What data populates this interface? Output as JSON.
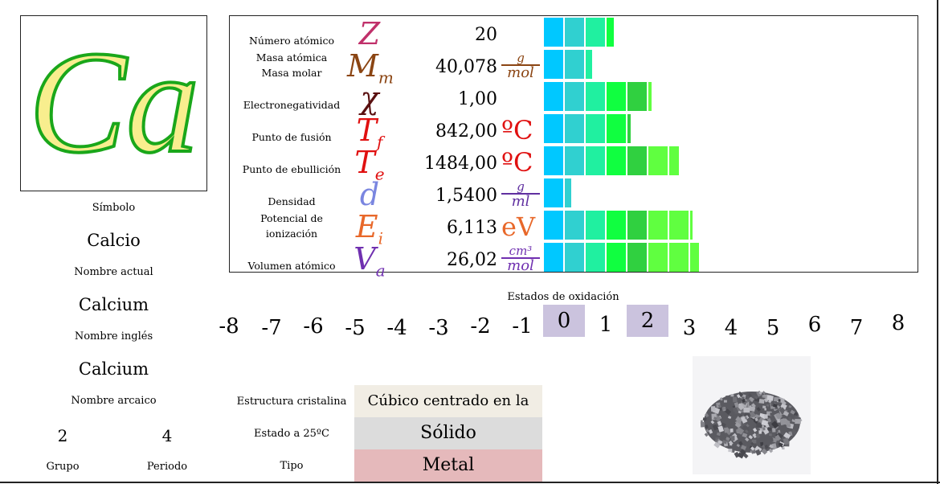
{
  "element": {
    "symbol": "Ca",
    "symbol_label": "Símbolo",
    "current_name": "Calcio",
    "current_name_label": "Nombre actual",
    "english_name": "Calcium",
    "english_name_label": "Nombre inglés",
    "archaic_name": "Calcium",
    "archaic_name_label": "Nombre arcaico",
    "group": "2",
    "group_label": "Grupo",
    "period": "4",
    "period_label": "Periodo"
  },
  "properties": [
    {
      "name": "Número atómico",
      "symbol": "Z",
      "sub": "",
      "value": "20",
      "unit": "",
      "bar_level": 0.52,
      "sym_color": "#c0306a"
    },
    {
      "name": "Masa atómica\nMasa molar",
      "symbol": "M",
      "sub": "m",
      "value": "40,078",
      "unit_num": "g",
      "unit_den": "mol",
      "bar_level": 0.36,
      "sym_color": "#8b4513",
      "unit_color": "#8b4513"
    },
    {
      "name": "Electronegatividad",
      "symbol": "χ",
      "sub": "",
      "value": "1,00",
      "unit": "",
      "bar_level": 0.8,
      "sym_color": "#5a1010"
    },
    {
      "name": "Punto de fusión",
      "symbol": "T",
      "sub": "f",
      "value": "842,00",
      "unit": "ºC",
      "bar_level": 0.64,
      "sym_color": "#e01010",
      "unit_color": "#e01010"
    },
    {
      "name": "Punto de ebullición",
      "symbol": "T",
      "sub": "e",
      "value": "1484,00",
      "unit": "ºC",
      "bar_level": 1.0,
      "sym_color": "#e01010",
      "unit_color": "#e01010"
    },
    {
      "name": "Densidad",
      "symbol": "d",
      "sub": "",
      "value": "1,5400",
      "unit_num": "g",
      "unit_den": "ml",
      "bar_level": 0.2,
      "sym_color": "#7a86e0",
      "unit_color": "#6030a0"
    },
    {
      "name": "Potencial de\nionización",
      "symbol": "E",
      "sub": "i",
      "value": "6,113",
      "unit": "eV",
      "bar_level": 1.1,
      "sym_color": "#e8682a",
      "unit_color": "#e8682a"
    },
    {
      "name": "Volumen atómico",
      "symbol": "V",
      "sub": "a",
      "value": "26,02",
      "unit_num": "cm³",
      "unit_den": "mol",
      "bar_level": 1.15,
      "sym_color": "#7030b0",
      "unit_color": "#7030b0"
    }
  ],
  "oxidation": {
    "title": "Estados de oxidación",
    "states": [
      "-8",
      "-7",
      "-6",
      "-5",
      "-4",
      "-3",
      "-2",
      "-1",
      "0",
      "1",
      "2",
      "3",
      "4",
      "5",
      "6",
      "7",
      "8"
    ],
    "highlighted": [
      "0",
      "2"
    ]
  },
  "bottom": {
    "crystal_label": "Estructura cristalina",
    "crystal_value": "Cúbico centrado en la cara",
    "state_label": "Estado a 25ºC",
    "state_value": "Sólido",
    "type_label": "Tipo",
    "type_value": "Metal"
  },
  "colors": {
    "symbol_fill": "#f8ee8e",
    "symbol_stroke": "#1aa71a",
    "crystal_bg": "#f1ede4",
    "state_bg": "#dcdcdc",
    "type_bg": "#e5b9bb",
    "ox_highlight": "#cbc3de",
    "bar_segments": [
      "#00c8ff",
      "#30d0d0",
      "#20f0a0",
      "#10ff40",
      "#30d040",
      "#60ff40"
    ]
  }
}
